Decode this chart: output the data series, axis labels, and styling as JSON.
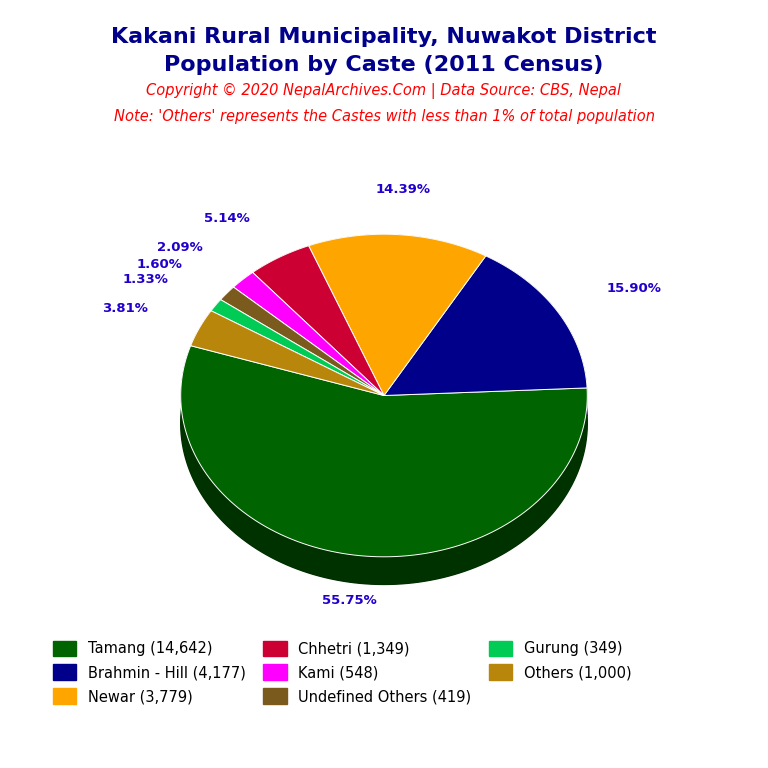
{
  "title_line1": "Kakani Rural Municipality, Nuwakot District",
  "title_line2": "Population by Caste (2011 Census)",
  "copyright": "Copyright © 2020 NepalArchives.Com | Data Source: CBS, Nepal",
  "note": "Note: 'Others' represents the Castes with less than 1% of total population",
  "title_color": "#00008B",
  "copyright_color": "#FF0000",
  "note_color": "#FF0000",
  "labels": [
    "Tamang",
    "Brahmin - Hill",
    "Newar",
    "Chhetri",
    "Kami",
    "Undefined Others",
    "Gurung",
    "Others"
  ],
  "values": [
    14642,
    4177,
    3779,
    1349,
    548,
    419,
    349,
    1000
  ],
  "colors": [
    "#006400",
    "#00008B",
    "#FFA500",
    "#CC0033",
    "#FF00FF",
    "#7B5A1E",
    "#00CC55",
    "#B8860B"
  ],
  "percentages": [
    "55.75%",
    "15.90%",
    "14.39%",
    "5.14%",
    "2.09%",
    "1.60%",
    "1.33%",
    "3.81%"
  ],
  "pct_color": "#2200CC",
  "background_color": "#FFFFFF",
  "startangle": 162,
  "legend_order": [
    0,
    1,
    2,
    3,
    4,
    5,
    6,
    7
  ],
  "legend_labels": [
    "Tamang (14,642)",
    "Brahmin - Hill (4,177)",
    "Newar (3,779)",
    "Chhetri (1,349)",
    "Kami (548)",
    "Undefined Others (419)",
    "Gurung (349)",
    "Others (1,000)"
  ]
}
